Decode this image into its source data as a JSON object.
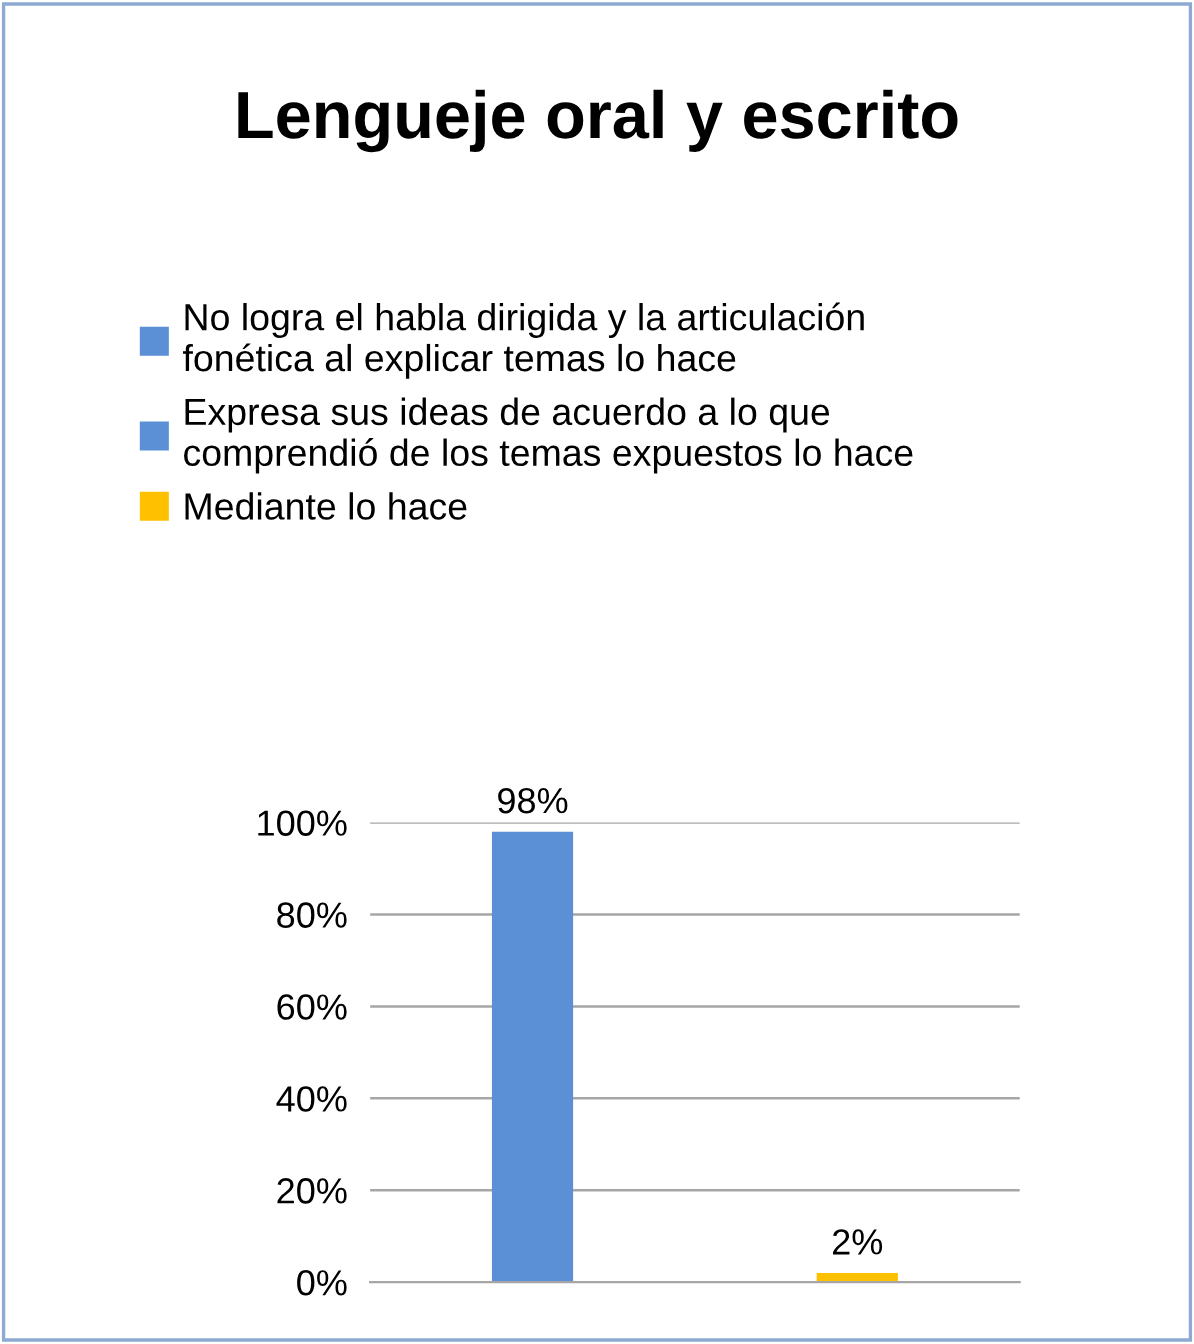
{
  "chart_data": {
    "type": "bar",
    "title": "Lengueje oral y escrito",
    "categories": [
      null,
      null
    ],
    "series": [
      {
        "name": "No logra el habla dirigida y la articulación\nfonética al explicar temas lo hace",
        "color": "#5b8fd6",
        "values": [
          98,
          null
        ]
      },
      {
        "name": "Expresa sus ideas de acuerdo a lo que\ncomprendió de los temas expuestos lo hace",
        "color": "#5b8fd6",
        "values": [
          null,
          null
        ]
      },
      {
        "name": "Mediante lo hace",
        "color": "#ffc000",
        "values": [
          null,
          2
        ]
      }
    ],
    "value_labels": [
      "98%",
      "2%"
    ],
    "ylim": [
      0,
      100
    ],
    "yticks": [
      {
        "value": 0,
        "label": "0%"
      },
      {
        "value": 20,
        "label": "20%"
      },
      {
        "value": 40,
        "label": "40%"
      },
      {
        "value": 60,
        "label": "60%"
      },
      {
        "value": 80,
        "label": "80%"
      },
      {
        "value": 100,
        "label": "100%"
      }
    ],
    "grid": "y",
    "legend": "top"
  }
}
